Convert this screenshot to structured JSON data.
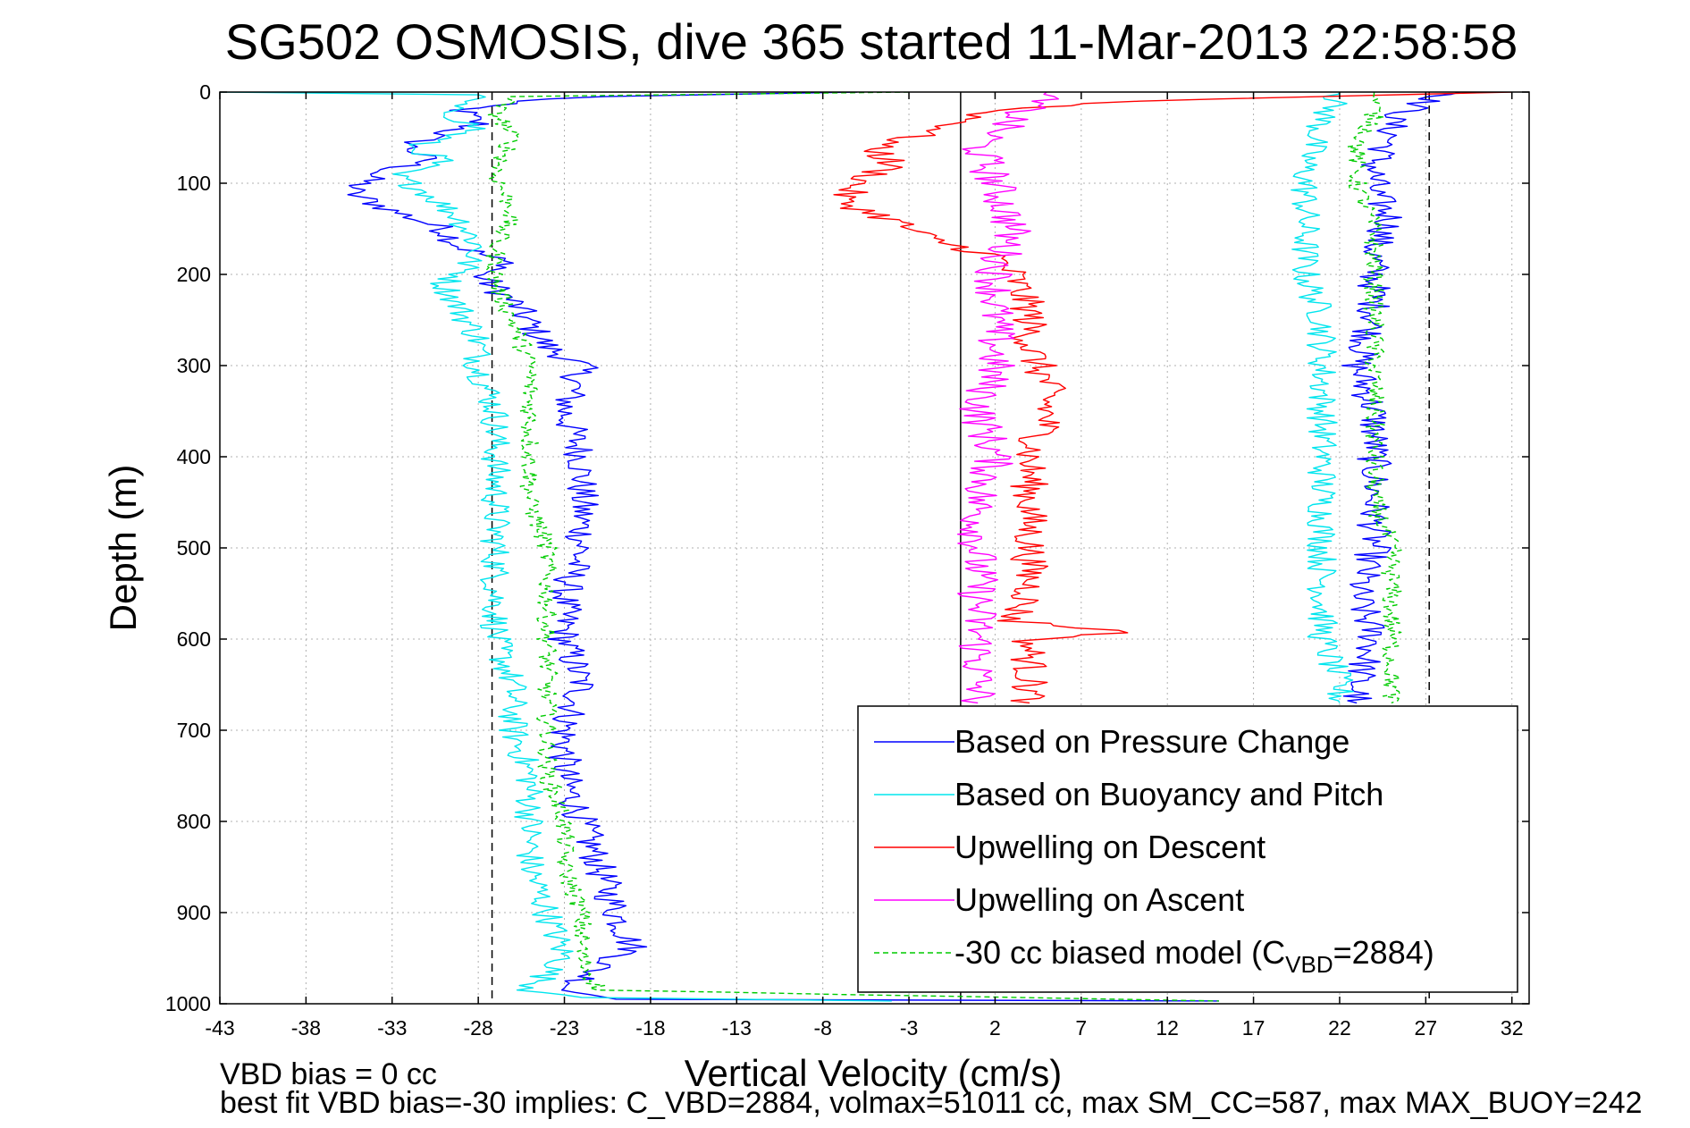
{
  "chart_data": {
    "type": "line",
    "title": "SG502 OSMOSIS, dive 365 started 11-Mar-2013 22:58:58",
    "xlabel": "Vertical Velocity (cm/s)",
    "ylabel": "Depth (m)",
    "xlim": [
      -43,
      33
    ],
    "ylim": [
      1000,
      0
    ],
    "y_reversed": true,
    "xticks": [
      -43,
      -38,
      -33,
      -28,
      -23,
      -18,
      -13,
      -8,
      -3,
      2,
      7,
      12,
      17,
      22,
      27,
      32
    ],
    "yticks": [
      0,
      100,
      200,
      300,
      400,
      500,
      600,
      700,
      800,
      900,
      1000
    ],
    "grid": true,
    "legend_position": "bottom-right",
    "reference_lines": [
      {
        "x": 0,
        "style": "solid",
        "color": "#000000"
      },
      {
        "x": -27.2,
        "style": "dashed",
        "color": "#000000"
      },
      {
        "x": 27.2,
        "style": "dashed",
        "color": "#000000"
      }
    ],
    "series": [
      {
        "name": "Based on Pressure Change",
        "color": "#0000ff",
        "dash": "none",
        "noise": 1.0,
        "segments": [
          [
            [
              -6,
              0
            ],
            [
              -21,
              5
            ],
            [
              -26,
              10
            ],
            [
              -29,
              20
            ],
            [
              -28,
              35
            ],
            [
              -31,
              50
            ],
            [
              -32,
              60
            ],
            [
              -31,
              75
            ],
            [
              -34,
              90
            ],
            [
              -35.5,
              110
            ],
            [
              -33,
              130
            ],
            [
              -30,
              150
            ],
            [
              -29,
              170
            ],
            [
              -26,
              190
            ],
            [
              -28,
              200
            ],
            [
              -26,
              230
            ],
            [
              -24,
              280
            ],
            [
              -22,
              300
            ],
            [
              -23,
              350
            ],
            [
              -22,
              400
            ],
            [
              -22,
              450
            ],
            [
              -22,
              500
            ],
            [
              -23,
              550
            ],
            [
              -23,
              600
            ],
            [
              -22,
              650
            ],
            [
              -23,
              700
            ],
            [
              -23,
              750
            ],
            [
              -22,
              800
            ],
            [
              -21,
              850
            ],
            [
              -20,
              900
            ],
            [
              -19,
              940
            ],
            [
              -21,
              960
            ],
            [
              -22,
              975
            ],
            [
              -23,
              985
            ],
            [
              -20,
              995
            ],
            [
              15,
              997
            ]
          ],
          [
            [
              29,
              0
            ],
            [
              27,
              10
            ],
            [
              25,
              30
            ],
            [
              25,
              50
            ],
            [
              24,
              80
            ],
            [
              24,
              110
            ],
            [
              25,
              140
            ],
            [
              24,
              170
            ],
            [
              24,
              200
            ],
            [
              24,
              250
            ],
            [
              23,
              300
            ],
            [
              24,
              350
            ],
            [
              24,
              400
            ],
            [
              24,
              450
            ],
            [
              24,
              500
            ],
            [
              23,
              550
            ],
            [
              24,
              600
            ],
            [
              23,
              650
            ],
            [
              23,
              670
            ]
          ]
        ]
      },
      {
        "name": "Based on Buoyancy and Pitch",
        "color": "#00e5ee",
        "dash": "none",
        "noise": 0.9,
        "segments": [
          [
            [
              -43,
              0
            ],
            [
              -28,
              3
            ],
            [
              -30,
              20
            ],
            [
              -28,
              40
            ],
            [
              -32,
              60
            ],
            [
              -30,
              75
            ],
            [
              -33,
              90
            ],
            [
              -31,
              110
            ],
            [
              -29,
              140
            ],
            [
              -28,
              170
            ],
            [
              -29,
              200
            ],
            [
              -30,
              210
            ],
            [
              -29,
              240
            ],
            [
              -28,
              270
            ],
            [
              -28,
              300
            ],
            [
              -27,
              350
            ],
            [
              -27,
              400
            ],
            [
              -27,
              450
            ],
            [
              -27,
              500
            ],
            [
              -27,
              550
            ],
            [
              -27,
              600
            ],
            [
              -26,
              650
            ],
            [
              -26,
              700
            ],
            [
              -25,
              750
            ],
            [
              -25,
              800
            ],
            [
              -25,
              850
            ],
            [
              -24,
              900
            ],
            [
              -23,
              950
            ],
            [
              -25,
              985
            ],
            [
              -22,
              993
            ],
            [
              -4,
              997
            ]
          ],
          [
            [
              22,
              0
            ],
            [
              21,
              30
            ],
            [
              20,
              80
            ],
            [
              20,
              120
            ],
            [
              20,
              160
            ],
            [
              20,
              200
            ],
            [
              21,
              250
            ],
            [
              21,
              300
            ],
            [
              21,
              350
            ],
            [
              21,
              400
            ],
            [
              21,
              450
            ],
            [
              21,
              500
            ],
            [
              21,
              550
            ],
            [
              21,
              600
            ],
            [
              22,
              650
            ],
            [
              22,
              670
            ]
          ]
        ]
      },
      {
        "name": "Upwelling on Descent",
        "color": "#ff0000",
        "dash": "none",
        "noise": 1.1,
        "segments": [
          [
            [
              32,
              0
            ],
            [
              10,
              10
            ],
            [
              2,
              20
            ],
            [
              -1,
              40
            ],
            [
              -5,
              60
            ],
            [
              -4,
              80
            ],
            [
              -6,
              100
            ],
            [
              -7,
              120
            ],
            [
              -4,
              140
            ],
            [
              -2,
              160
            ],
            [
              2,
              180
            ],
            [
              3,
              200
            ],
            [
              4,
              240
            ],
            [
              4,
              280
            ],
            [
              5,
              320
            ],
            [
              5,
              360
            ],
            [
              4,
              400
            ],
            [
              4,
              450
            ],
            [
              4,
              500
            ],
            [
              4,
              550
            ],
            [
              3,
              580
            ],
            [
              10,
              593
            ],
            [
              4,
              600
            ],
            [
              4,
              650
            ],
            [
              4,
              670
            ]
          ]
        ]
      },
      {
        "name": "Upwelling on Ascent",
        "color": "#ff00ff",
        "dash": "none",
        "noise": 1.2,
        "segments": [
          [
            [
              5,
              0
            ],
            [
              3,
              30
            ],
            [
              1,
              60
            ],
            [
              2,
              100
            ],
            [
              3,
              150
            ],
            [
              2,
              200
            ],
            [
              2,
              250
            ],
            [
              2,
              300
            ],
            [
              1,
              350
            ],
            [
              2,
              400
            ],
            [
              1,
              450
            ],
            [
              1,
              500
            ],
            [
              1,
              550
            ],
            [
              1,
              600
            ],
            [
              1,
              650
            ],
            [
              1,
              670
            ]
          ]
        ]
      },
      {
        "name": "-30 cc biased model (C",
        "name_subscript": "VBD",
        "name_suffix": "=2884)",
        "color": "#00cc00",
        "dash": "6 4",
        "noise": 0.6,
        "segments": [
          [
            [
              -3,
              0
            ],
            [
              -26,
              5
            ],
            [
              -27,
              20
            ],
            [
              -26,
              50
            ],
            [
              -27,
              90
            ],
            [
              -26,
              130
            ],
            [
              -27,
              170
            ],
            [
              -27,
              210
            ],
            [
              -26,
              250
            ],
            [
              -25,
              300
            ],
            [
              -25,
              350
            ],
            [
              -25,
              400
            ],
            [
              -25,
              450
            ],
            [
              -24,
              500
            ],
            [
              -24,
              550
            ],
            [
              -24,
              600
            ],
            [
              -24,
              650
            ],
            [
              -24,
              700
            ],
            [
              -24,
              750
            ],
            [
              -23,
              800
            ],
            [
              -23,
              850
            ],
            [
              -22,
              900
            ],
            [
              -22,
              950
            ],
            [
              -21,
              985
            ],
            [
              15,
              997
            ]
          ],
          [
            [
              24,
              0
            ],
            [
              24,
              30
            ],
            [
              23,
              60
            ],
            [
              23,
              100
            ],
            [
              24,
              150
            ],
            [
              24,
              200
            ],
            [
              24,
              250
            ],
            [
              24,
              300
            ],
            [
              24,
              350
            ],
            [
              24,
              400
            ],
            [
              24,
              450
            ],
            [
              25,
              500
            ],
            [
              25,
              550
            ],
            [
              25,
              600
            ],
            [
              25,
              650
            ],
            [
              25,
              670
            ]
          ]
        ]
      }
    ]
  },
  "footnote": {
    "line1": "VBD bias = 0 cc",
    "line2": "best fit VBD bias=-30 implies: C_VBD=2884, volmax=51011 cc, max SM_CC=587, max MAX_BUOY=242"
  }
}
